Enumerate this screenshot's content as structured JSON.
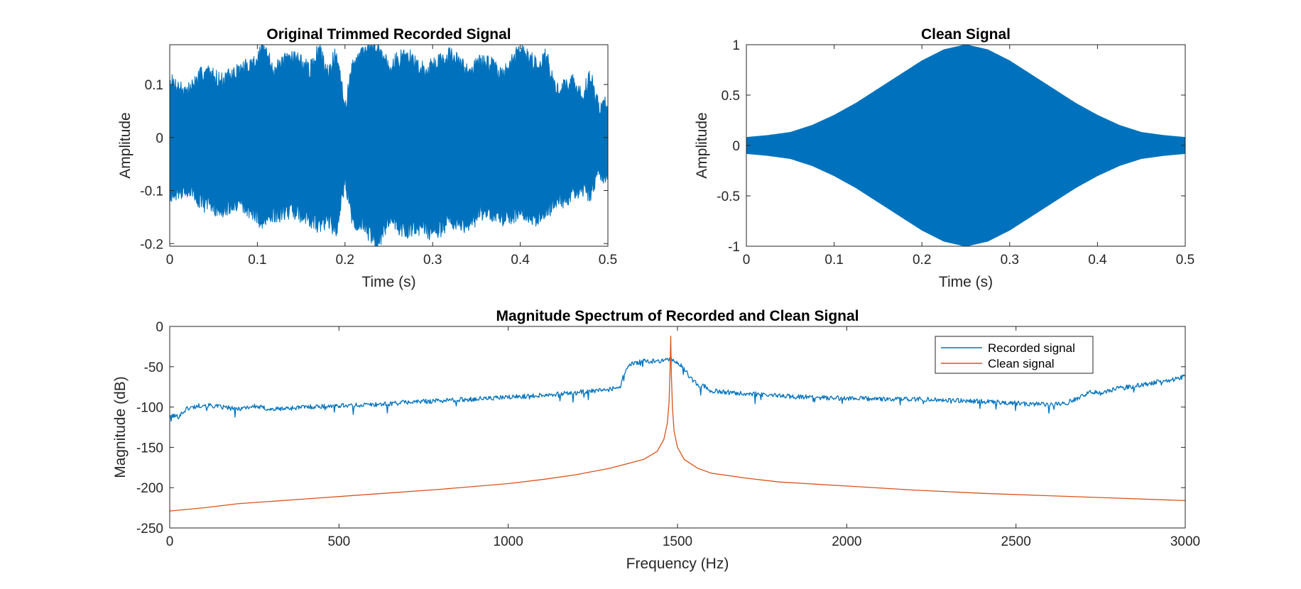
{
  "colors": {
    "recorded": "#0072BD",
    "clean": "#D95319",
    "axis": "#262626",
    "background": "#ffffff"
  },
  "chart_data": [
    {
      "type": "line",
      "title": "Original Trimmed Recorded Signal",
      "xlabel": "Time (s)",
      "ylabel": "Amplitude",
      "xlim": [
        0,
        0.5
      ],
      "ylim": [
        -0.205,
        0.175
      ],
      "xticks": [
        0,
        0.1,
        0.2,
        0.3,
        0.4,
        0.5
      ],
      "xtick_labels": [
        "0",
        "0.1",
        "0.2",
        "0.3",
        "0.4",
        "0.5"
      ],
      "yticks": [
        -0.2,
        -0.1,
        0,
        0.1
      ],
      "ytick_labels": [
        "-0.2",
        "-0.1",
        "0",
        "0.1"
      ],
      "grid": false,
      "envelope": {
        "x": [
          0,
          0.02,
          0.04,
          0.06,
          0.08,
          0.1,
          0.105,
          0.12,
          0.14,
          0.16,
          0.17,
          0.18,
          0.19,
          0.2,
          0.21,
          0.22,
          0.235,
          0.25,
          0.27,
          0.29,
          0.3,
          0.32,
          0.34,
          0.36,
          0.38,
          0.4,
          0.42,
          0.43,
          0.44,
          0.46,
          0.47,
          0.48,
          0.49,
          0.5
        ],
        "upper": [
          0.1,
          0.08,
          0.12,
          0.1,
          0.12,
          0.14,
          0.165,
          0.12,
          0.15,
          0.12,
          0.16,
          0.12,
          0.15,
          0.05,
          0.14,
          0.15,
          0.17,
          0.13,
          0.15,
          0.12,
          0.13,
          0.15,
          0.12,
          0.14,
          0.11,
          0.16,
          0.13,
          0.15,
          0.08,
          0.1,
          0.07,
          0.11,
          0.05,
          0.06
        ],
        "lower": [
          -0.1,
          -0.09,
          -0.12,
          -0.13,
          -0.12,
          -0.14,
          -0.16,
          -0.14,
          -0.13,
          -0.15,
          -0.16,
          -0.15,
          -0.17,
          -0.08,
          -0.16,
          -0.15,
          -0.2,
          -0.15,
          -0.17,
          -0.16,
          -0.18,
          -0.15,
          -0.16,
          -0.13,
          -0.15,
          -0.14,
          -0.15,
          -0.13,
          -0.12,
          -0.1,
          -0.09,
          -0.1,
          -0.06,
          -0.07
        ]
      }
    },
    {
      "type": "line",
      "title": "Clean Signal",
      "xlabel": "Time (s)",
      "ylabel": "Amplitude",
      "xlim": [
        0,
        0.5
      ],
      "ylim": [
        -1,
        1
      ],
      "xticks": [
        0,
        0.1,
        0.2,
        0.3,
        0.4,
        0.5
      ],
      "xtick_labels": [
        "0",
        "0.1",
        "0.2",
        "0.3",
        "0.4",
        "0.5"
      ],
      "yticks": [
        -1,
        -0.5,
        0,
        0.5,
        1
      ],
      "ytick_labels": [
        "-1",
        "-0.5",
        "0",
        "0.5",
        "1"
      ],
      "grid": false,
      "envelope": {
        "x": [
          0,
          0.025,
          0.05,
          0.075,
          0.1,
          0.125,
          0.15,
          0.175,
          0.2,
          0.225,
          0.25,
          0.275,
          0.3,
          0.325,
          0.35,
          0.375,
          0.4,
          0.425,
          0.45,
          0.475,
          0.5
        ],
        "upper": [
          0.08,
          0.1,
          0.13,
          0.2,
          0.3,
          0.42,
          0.56,
          0.7,
          0.84,
          0.95,
          1,
          0.95,
          0.84,
          0.7,
          0.56,
          0.42,
          0.3,
          0.2,
          0.13,
          0.1,
          0.08
        ],
        "lower": [
          -0.08,
          -0.1,
          -0.13,
          -0.2,
          -0.3,
          -0.42,
          -0.56,
          -0.7,
          -0.84,
          -0.95,
          -1,
          -0.95,
          -0.84,
          -0.7,
          -0.56,
          -0.42,
          -0.3,
          -0.2,
          -0.13,
          -0.1,
          -0.08
        ]
      }
    },
    {
      "type": "line",
      "title": "Magnitude Spectrum of Recorded and Clean Signal",
      "xlabel": "Frequency (Hz)",
      "ylabel": "Magnitude (dB)",
      "xlim": [
        0,
        3000
      ],
      "ylim": [
        -250,
        0
      ],
      "xticks": [
        0,
        500,
        1000,
        1500,
        2000,
        2500,
        3000
      ],
      "xtick_labels": [
        "0",
        "500",
        "1000",
        "1500",
        "2000",
        "2500",
        "3000"
      ],
      "yticks": [
        -250,
        -200,
        -150,
        -100,
        -50,
        0
      ],
      "ytick_labels": [
        "-250",
        "-200",
        "-150",
        "-100",
        "-50",
        "0"
      ],
      "grid": false,
      "legend": {
        "position": "top-right",
        "entries": [
          "Recorded signal",
          "Clean signal"
        ]
      },
      "series": [
        {
          "name": "Recorded signal",
          "x": [
            0,
            25,
            50,
            100,
            150,
            200,
            250,
            300,
            400,
            500,
            600,
            700,
            800,
            900,
            1000,
            1100,
            1200,
            1300,
            1330,
            1345,
            1360,
            1380,
            1400,
            1420,
            1440,
            1460,
            1480,
            1500,
            1520,
            1540,
            1560,
            1580,
            1600,
            1700,
            1800,
            1900,
            2000,
            2100,
            2200,
            2300,
            2400,
            2500,
            2600,
            2650,
            2700,
            2720,
            2750,
            2800,
            2850,
            2900,
            2950,
            3000
          ],
          "y": [
            -110,
            -112,
            -102,
            -97,
            -100,
            -102,
            -99,
            -103,
            -100,
            -98,
            -97,
            -94,
            -92,
            -90,
            -88,
            -85,
            -82,
            -78,
            -75,
            -55,
            -47,
            -45,
            -43,
            -44,
            -42,
            -43,
            -40,
            -45,
            -52,
            -65,
            -72,
            -74,
            -80,
            -83,
            -86,
            -88,
            -89,
            -90,
            -90,
            -91,
            -93,
            -95,
            -97,
            -95,
            -85,
            -80,
            -82,
            -77,
            -74,
            -70,
            -67,
            -62
          ]
        },
        {
          "name": "Clean signal",
          "x": [
            0,
            50,
            100,
            200,
            400,
            600,
            800,
            1000,
            1100,
            1200,
            1300,
            1400,
            1440,
            1460,
            1470,
            1475,
            1478,
            1480,
            1482,
            1485,
            1490,
            1500,
            1520,
            1560,
            1600,
            1700,
            1800,
            2000,
            2200,
            2400,
            2600,
            2800,
            3000
          ],
          "y": [
            -229,
            -227,
            -225,
            -220,
            -214,
            -208,
            -202,
            -195,
            -190,
            -184,
            -176,
            -165,
            -155,
            -140,
            -120,
            -95,
            -55,
            -12,
            -60,
            -100,
            -130,
            -150,
            -165,
            -176,
            -182,
            -188,
            -193,
            -198,
            -203,
            -207,
            -210,
            -213,
            -216
          ]
        }
      ]
    }
  ]
}
